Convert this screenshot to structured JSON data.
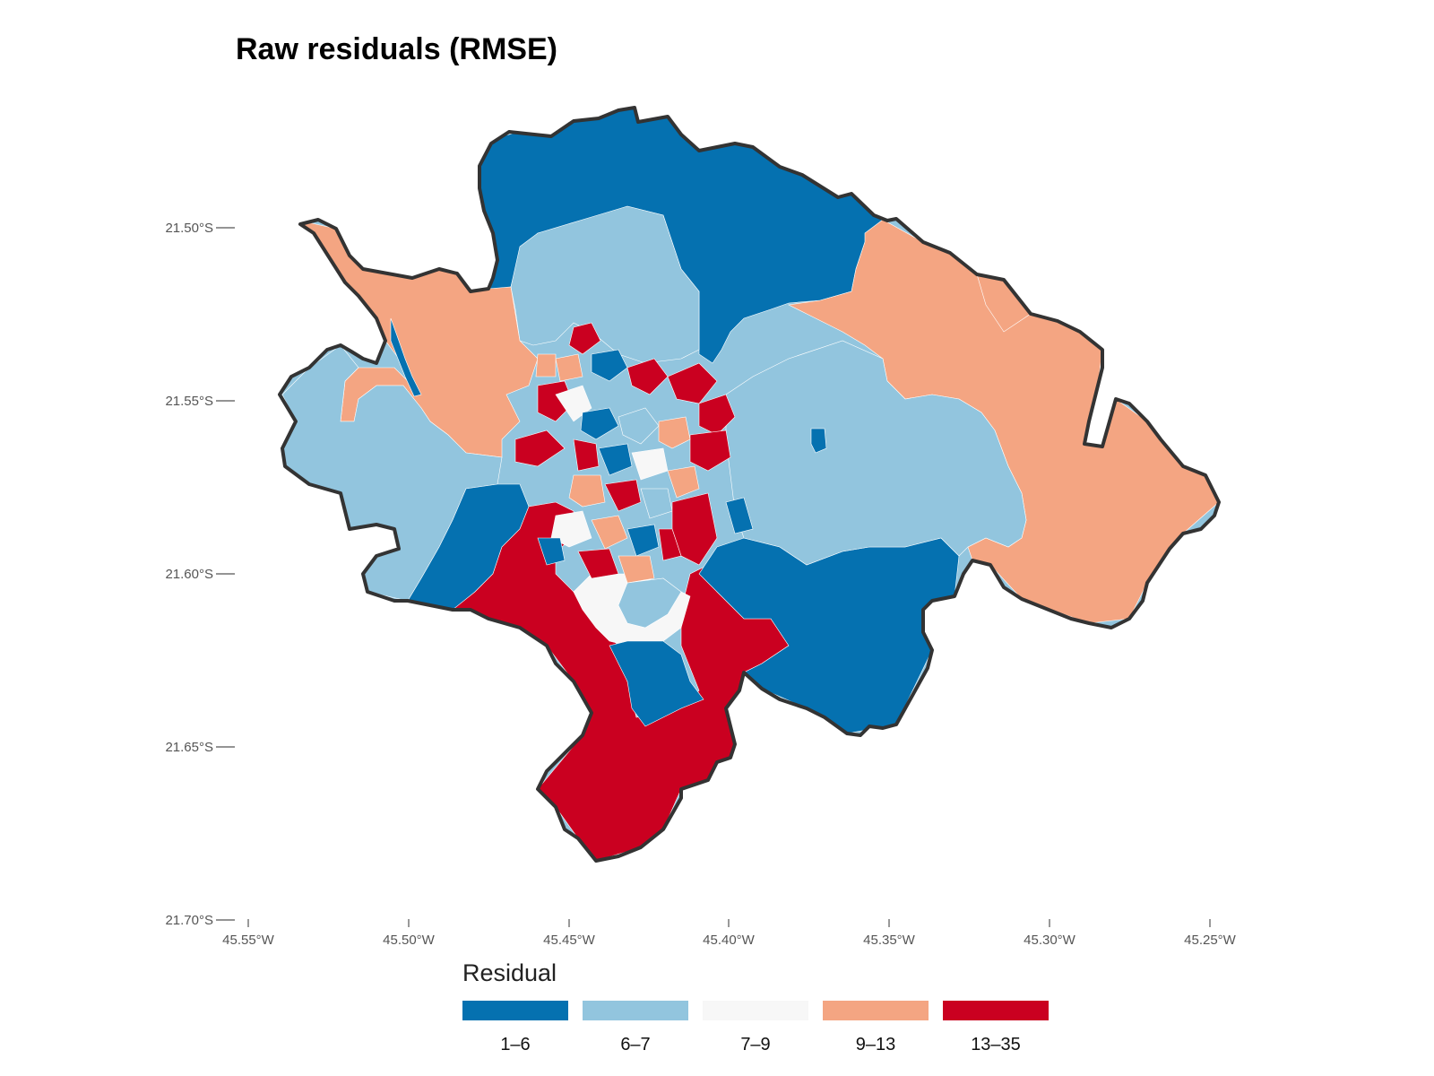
{
  "title": "Raw residuals (RMSE)",
  "axes": {
    "y_ticks": [
      "21.50°S",
      "21.55°S",
      "21.60°S",
      "21.65°S",
      "21.70°S"
    ],
    "x_ticks": [
      "45.55°W",
      "45.50°W",
      "45.45°W",
      "45.40°W",
      "45.35°W",
      "45.30°W",
      "45.25°W"
    ]
  },
  "legend": {
    "title": "Residual",
    "classes": [
      {
        "label": "1–6",
        "color": "#0571b0"
      },
      {
        "label": "6–7",
        "color": "#92c5de"
      },
      {
        "label": "7–9",
        "color": "#f7f7f7"
      },
      {
        "label": "9–13",
        "color": "#f4a582"
      },
      {
        "label": "13–35",
        "color": "#ca0020"
      }
    ]
  },
  "colors": {
    "boundary": "#333333",
    "dark_blue": "#0571b0",
    "light_blue": "#92c5de",
    "white": "#f7f7f7",
    "salmon": "#f4a582",
    "red": "#ca0020"
  }
}
